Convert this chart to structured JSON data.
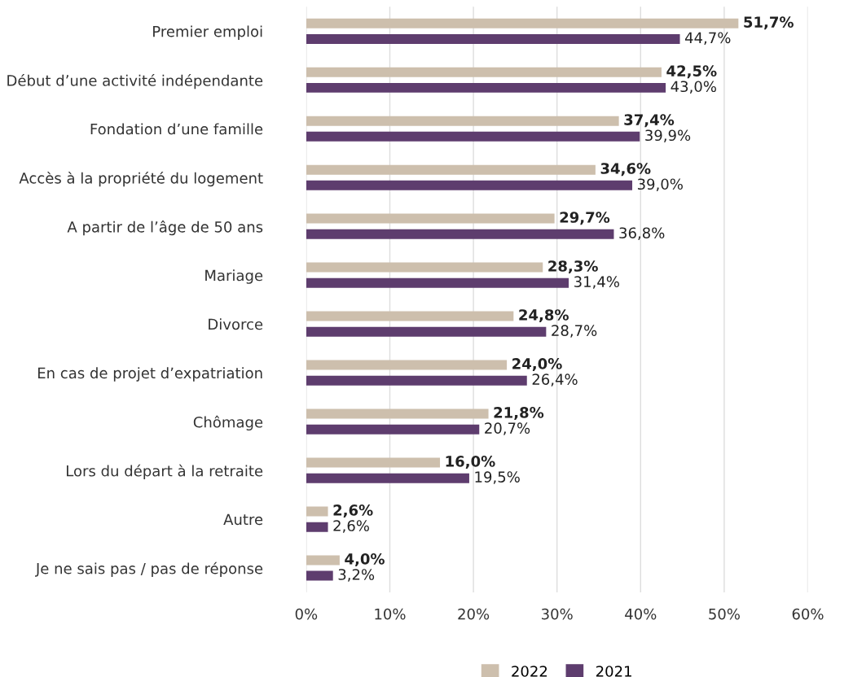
{
  "chart_data": {
    "type": "bar",
    "orientation": "horizontal",
    "categories": [
      "Premier emploi",
      "Début d’une activité indépendante",
      "Fondation d’une famille",
      "Accès à la propriété du logement",
      "A partir de l’âge de 50 ans",
      "Mariage",
      "Divorce",
      "En cas de projet d’expatriation",
      "Chômage",
      "Lors du départ à la retraite",
      "Autre",
      "Je ne sais pas / pas de réponse"
    ],
    "series": [
      {
        "name": "2022",
        "color": "#cdbfad",
        "values": [
          51.7,
          42.5,
          37.4,
          34.6,
          29.7,
          28.3,
          24.8,
          24.0,
          21.8,
          16.0,
          2.6,
          4.0
        ],
        "value_labels": [
          "51,7%",
          "42,5%",
          "37,4%",
          "34,6%",
          "29,7%",
          "28,3%",
          "24,8%",
          "24,0%",
          "21,8%",
          "16,0%",
          "2,6%",
          "4,0%"
        ]
      },
      {
        "name": "2021",
        "color": "#5e3d6e",
        "values": [
          44.7,
          43.0,
          39.9,
          39.0,
          36.8,
          31.4,
          28.7,
          26.4,
          20.7,
          19.5,
          2.6,
          3.2
        ],
        "value_labels": [
          "44,7%",
          "43,0%",
          "39,9%",
          "39,0%",
          "36,8%",
          "31,4%",
          "28,7%",
          "26,4%",
          "20,7%",
          "19,5%",
          "2,6%",
          "3,2%"
        ]
      }
    ],
    "xlim": [
      0,
      60
    ],
    "xticks": [
      {
        "value": 0,
        "label": "0%"
      },
      {
        "value": 10,
        "label": "10%"
      },
      {
        "value": 20,
        "label": "20%"
      },
      {
        "value": 30,
        "label": "30%"
      },
      {
        "value": 40,
        "label": "40%"
      },
      {
        "value": 50,
        "label": "50%"
      },
      {
        "value": 60,
        "label": "60%"
      }
    ],
    "grid": "x",
    "legend": "bottom"
  }
}
